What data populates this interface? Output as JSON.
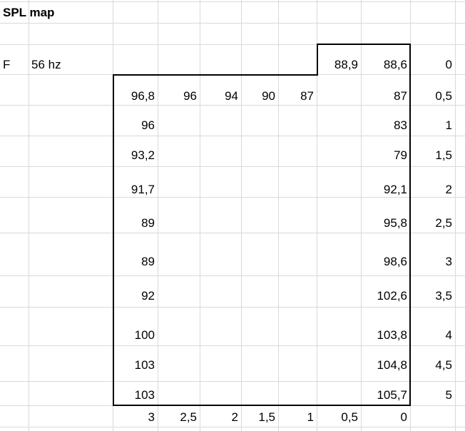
{
  "title": "SPL map",
  "row_label": "F",
  "frequency": "56 hz",
  "top_row_values": [
    "88,9",
    "88,6",
    "0"
  ],
  "first_row": [
    "96,8",
    "96",
    "94",
    "90",
    "87",
    "87",
    "0,5"
  ],
  "left_column": [
    "96",
    "93,2",
    "91,7",
    "89",
    "89",
    "92",
    "100",
    "103",
    "103"
  ],
  "right_column": [
    "83",
    "79",
    "92,1",
    "95,8",
    "98,6",
    "102,6",
    "103,8",
    "104,8",
    "105,7"
  ],
  "distance_column": [
    "1",
    "1,5",
    "2",
    "2,5",
    "3",
    "3,5",
    "4",
    "4,5",
    "5"
  ],
  "bottom_axis": [
    "3",
    "2,5",
    "2",
    "1,5",
    "1",
    "0,5",
    "0"
  ]
}
